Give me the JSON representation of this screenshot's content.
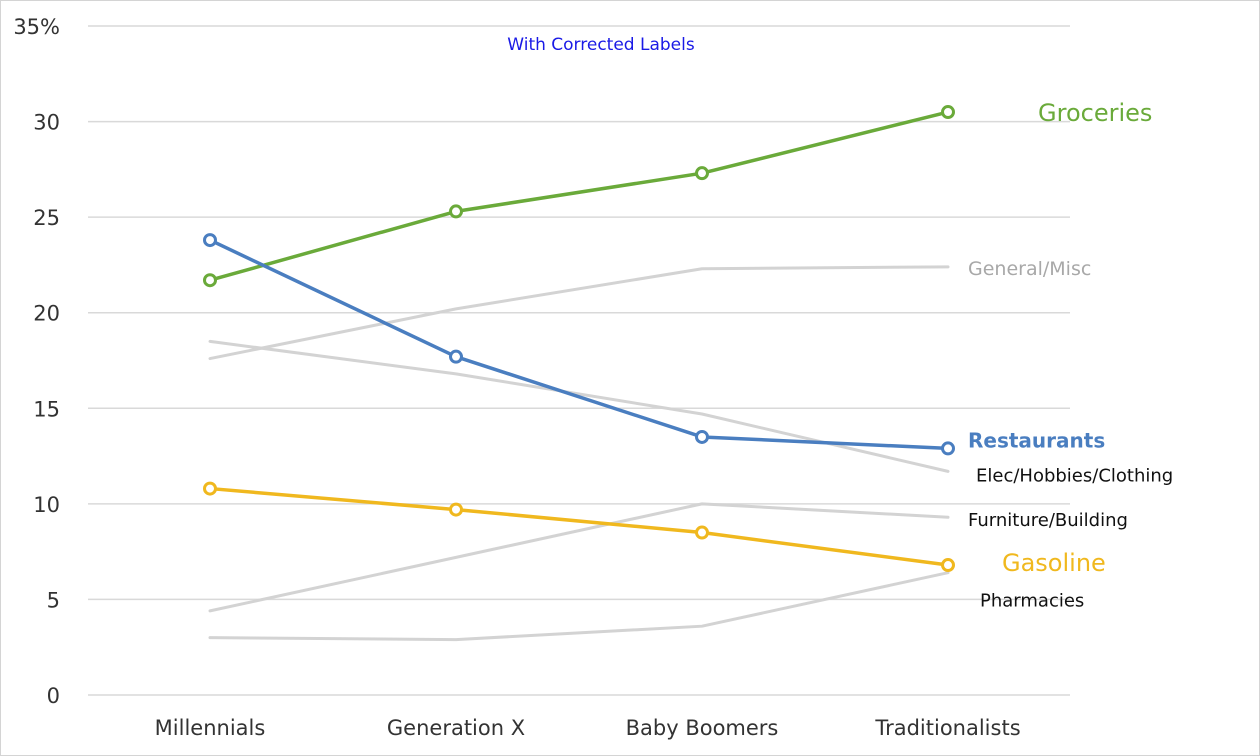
{
  "chart_data": {
    "type": "line",
    "title": "",
    "annotation": "With Corrected Labels",
    "xlabel": "",
    "ylabel": "",
    "ylim": [
      0,
      35
    ],
    "y_ticks": [
      "0",
      "5",
      "10",
      "15",
      "20",
      "25",
      "30",
      "35%"
    ],
    "categories": [
      "Millennials",
      "Generation X",
      "Baby Boomers",
      "Traditionalists"
    ],
    "grid": true,
    "series": [
      {
        "name": "Groceries",
        "values": [
          21.7,
          25.3,
          27.3,
          30.5
        ],
        "color": "#6aaa3a",
        "highlight": true
      },
      {
        "name": "General/Misc",
        "values": [
          17.6,
          20.2,
          22.3,
          22.4
        ],
        "color": "#aaaaaa",
        "highlight": false
      },
      {
        "name": "Restaurants",
        "values": [
          23.8,
          17.7,
          13.5,
          12.9
        ],
        "color": "#4a7ec0",
        "highlight": true
      },
      {
        "name": "Elec/Hobbies/Clothing",
        "values": [
          18.5,
          16.8,
          14.7,
          11.7
        ],
        "color": "#000000",
        "highlight": false
      },
      {
        "name": "Furniture/Building",
        "values": [
          4.4,
          7.2,
          10.0,
          9.3
        ],
        "color": "#000000",
        "highlight": false
      },
      {
        "name": "Gasoline",
        "values": [
          10.8,
          9.7,
          8.5,
          6.8
        ],
        "color": "#f0b81e",
        "highlight": true
      },
      {
        "name": "Pharmacies",
        "values": [
          3.0,
          2.9,
          3.6,
          6.4
        ],
        "color": "#000000",
        "highlight": false
      }
    ]
  }
}
